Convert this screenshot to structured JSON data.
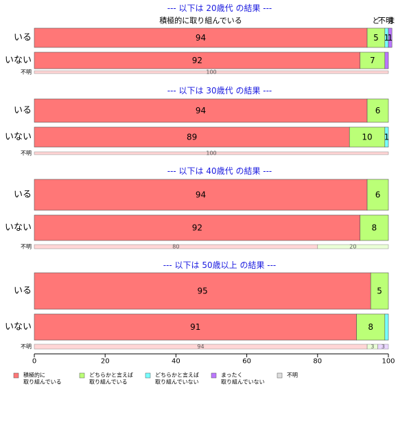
{
  "chart_data": {
    "type": "bar",
    "orientation": "horizontal",
    "stacked": true,
    "xlim": [
      0,
      100
    ],
    "xticks": [
      "0",
      "20",
      "40",
      "60",
      "80",
      "100"
    ],
    "colors": [
      "#ff7777",
      "#bbff77",
      "#77ffff",
      "#bb77ff",
      "#dddddd"
    ],
    "legend": {
      "placement": "bottom",
      "items": [
        {
          "l1": "積極的に",
          "l2": "取り組んでいる"
        },
        {
          "l1": "どちらかと言えば",
          "l2": "取り組んでいる"
        },
        {
          "l1": "どちらかと言えば",
          "l2": "取り組んでいない"
        },
        {
          "l1": "まったく",
          "l2": "取り組んでいない"
        },
        {
          "l1": "不明",
          "l2": ""
        }
      ]
    },
    "panels": [
      {
        "title": "--- 以下は 20歳代 の結果 ---",
        "header_labels": [
          {
            "text": "積極的に取り組んでいる",
            "seg": 0
          },
          {
            "text": "どちらかと言えば取り組んでいる",
            "seg": 1,
            "short": "ど"
          },
          {
            "text": "まったく取り組んでいない",
            "seg": 3,
            "short": "ま"
          },
          {
            "text": "不明",
            "seg": 4
          }
        ],
        "rows": [
          {
            "label": "いる",
            "values": [
              94,
              5,
              1,
              1,
              0
            ],
            "labels": [
              "94",
              "5",
              "1",
              "1",
              ""
            ]
          },
          {
            "label": "いない",
            "values": [
              92,
              7,
              0,
              1,
              0
            ],
            "labels": [
              "92",
              "7",
              "",
              "",
              ""
            ]
          },
          {
            "label": "不明",
            "small": true,
            "values": [
              100,
              0,
              0,
              0,
              0
            ],
            "labels": [
              "100",
              "",
              "",
              "",
              ""
            ]
          }
        ]
      },
      {
        "title": "--- 以下は 30歳代 の結果 ---",
        "rows": [
          {
            "label": "いる",
            "values": [
              94,
              6,
              0,
              0,
              0
            ],
            "labels": [
              "94",
              "6",
              "",
              "",
              ""
            ]
          },
          {
            "label": "いない",
            "values": [
              89,
              10,
              1,
              0,
              0
            ],
            "labels": [
              "89",
              "10",
              "1",
              "",
              ""
            ]
          },
          {
            "label": "不明",
            "small": true,
            "values": [
              100,
              0,
              0,
              0,
              0
            ],
            "labels": [
              "100",
              "",
              "",
              "",
              ""
            ]
          }
        ]
      },
      {
        "title": "--- 以下は 40歳代 の結果 ---",
        "rows": [
          {
            "label": "いる",
            "values": [
              94,
              6,
              0,
              0,
              0
            ],
            "labels": [
              "94",
              "6",
              "",
              "",
              ""
            ]
          },
          {
            "label": "いない",
            "values": [
              92,
              8,
              0,
              0,
              0
            ],
            "labels": [
              "92",
              "8",
              "",
              "",
              ""
            ]
          },
          {
            "label": "不明",
            "small": true,
            "values": [
              80,
              20,
              0,
              0,
              0
            ],
            "labels": [
              "80",
              "20",
              "",
              "",
              ""
            ]
          }
        ]
      },
      {
        "title": "--- 以下は 50歳以上 の結果 ---",
        "rows": [
          {
            "label": "いる",
            "values": [
              95,
              5,
              0,
              0,
              0
            ],
            "labels": [
              "95",
              "5",
              "",
              "",
              ""
            ]
          },
          {
            "label": "いない",
            "values": [
              91,
              8,
              1,
              0,
              0
            ],
            "labels": [
              "91",
              "8",
              "",
              "",
              ""
            ]
          },
          {
            "label": "不明",
            "small": true,
            "values": [
              94,
              3,
              0,
              3,
              0
            ],
            "labels": [
              "94",
              "3",
              "",
              "3",
              ""
            ]
          }
        ]
      }
    ]
  }
}
